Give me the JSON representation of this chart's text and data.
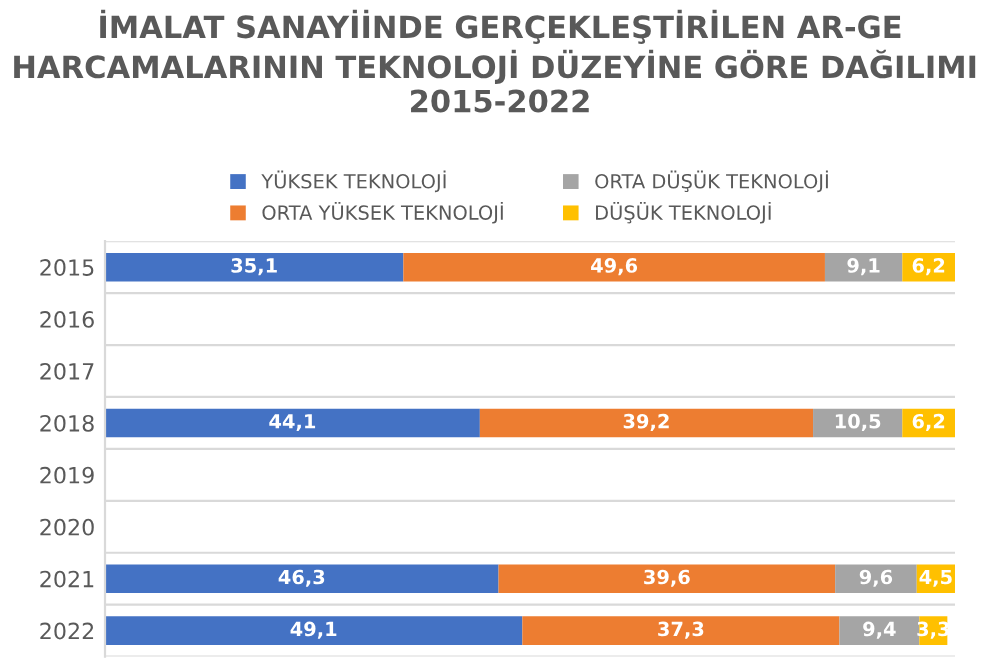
{
  "chart_data": {
    "type": "bar",
    "orientation": "horizontal",
    "stacked": true,
    "title": "İMALAT SANAYİİNDE GERÇEKLEŞTİRİLEN AR-GE HARCAMALARININ TEKNOLOJİ DÜZEYİNE GÖRE DAĞILIMI  2015-2022",
    "categories": [
      "2015",
      "2016",
      "2017",
      "2018",
      "2019",
      "2020",
      "2021",
      "2022"
    ],
    "series": [
      {
        "name": "YÜKSEK TEKNOLOJİ",
        "color": "#4472c4",
        "values": [
          35.1,
          null,
          null,
          44.1,
          null,
          null,
          46.3,
          49.1
        ],
        "value_labels": [
          "35,1",
          null,
          null,
          "44,1",
          null,
          null,
          "46,3",
          "49,1"
        ]
      },
      {
        "name": "ORTA YÜKSEK TEKNOLOJİ",
        "color": "#ed7d31",
        "values": [
          49.6,
          null,
          null,
          39.2,
          null,
          null,
          39.6,
          37.3
        ],
        "value_labels": [
          "49,6",
          null,
          null,
          "39,2",
          null,
          null,
          "39,6",
          "37,3"
        ]
      },
      {
        "name": "ORTA DÜŞÜK TEKNOLOJİ",
        "color": "#a5a5a5",
        "values": [
          9.1,
          null,
          null,
          10.5,
          null,
          null,
          9.6,
          9.4
        ],
        "value_labels": [
          "9,1",
          null,
          null,
          "10,5",
          null,
          null,
          "9,6",
          "9,4"
        ]
      },
      {
        "name": "DÜŞÜK TEKNOLOJİ",
        "color": "#ffc000",
        "values": [
          6.2,
          null,
          null,
          6.2,
          null,
          null,
          4.5,
          3.3
        ],
        "value_labels": [
          "6,2",
          null,
          null,
          "6,2",
          null,
          null,
          "4,5",
          "3,3"
        ]
      }
    ],
    "grid": "y",
    "legend": "top",
    "tick_labels": "y"
  }
}
